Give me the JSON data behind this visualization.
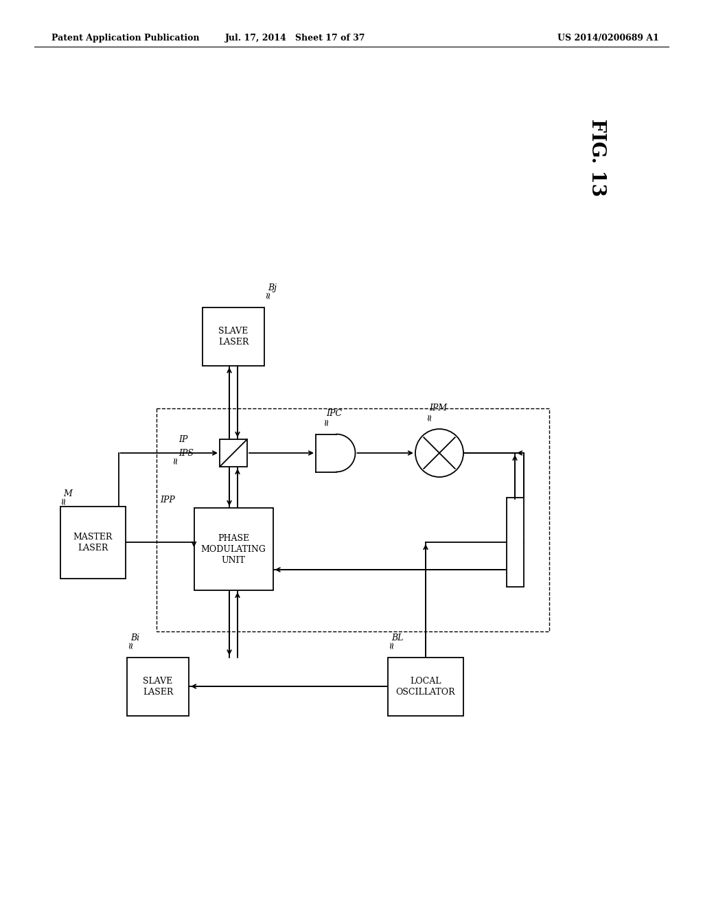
{
  "bg_color": "#ffffff",
  "line_color": "#000000",
  "header_left": "Patent Application Publication",
  "header_mid": "Jul. 17, 2014   Sheet 17 of 37",
  "header_right": "US 2014/0200689 A1",
  "fig_label": "FIG. 13",
  "lw": 1.3
}
